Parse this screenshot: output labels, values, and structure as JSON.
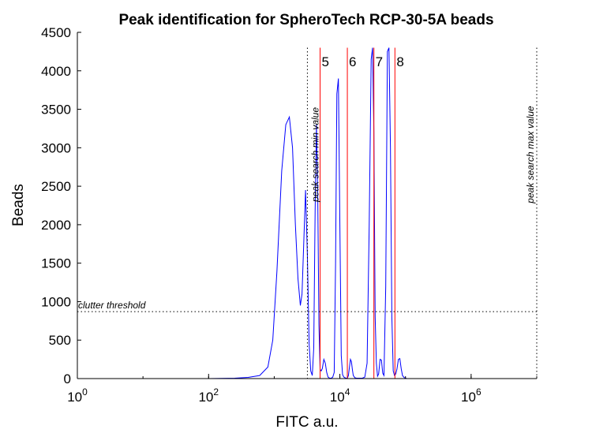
{
  "chart_data": {
    "type": "line",
    "title": "Peak identification for SpheroTech RCP-30-5A beads",
    "xlabel": "FITC a.u.",
    "ylabel": "Beads",
    "xscale": "log",
    "xlim": [
      1,
      10000000
    ],
    "ylim": [
      0,
      4500
    ],
    "x_ticks": [
      {
        "base": "10",
        "exp": "0",
        "value": 1
      },
      {
        "base": "10",
        "exp": "2",
        "value": 100
      },
      {
        "base": "10",
        "exp": "4",
        "value": 10000
      },
      {
        "base": "10",
        "exp": "6",
        "value": 1000000
      }
    ],
    "y_ticks": [
      "0",
      "500",
      "1000",
      "1500",
      "2000",
      "2500",
      "3000",
      "3500",
      "4000",
      "4500"
    ],
    "series": [
      {
        "color": "#0000ff",
        "x": [
          1,
          100,
          250,
          400,
          600,
          800,
          950,
          1100,
          1300,
          1500,
          1700,
          1900,
          2100,
          2300,
          2500,
          2650,
          2800,
          3000,
          3200,
          3400,
          3600,
          3800,
          4000,
          4200,
          4400,
          4600,
          4800,
          5000,
          5200,
          5400,
          5700,
          6000,
          6300,
          6600,
          7000,
          7400,
          7800,
          8200,
          8600,
          9000,
          9500,
          10000,
          10500,
          11000,
          11500,
          12000,
          12500,
          13000,
          13500,
          14000,
          14500,
          15000,
          15500,
          16000,
          17000,
          18000,
          19000,
          20000,
          22000,
          24000,
          26000,
          28000,
          30000,
          31500,
          33000,
          34500,
          36000,
          37500,
          39000,
          41000,
          43000,
          45000,
          47000,
          50000,
          53000,
          56000,
          59000,
          62000,
          65000,
          68000,
          71000,
          74000,
          78000,
          82000,
          86000,
          90000,
          95000,
          100000,
          105000,
          110000,
          120000,
          140000,
          200000,
          1000000,
          10000000
        ],
        "y": [
          0,
          0,
          5,
          15,
          40,
          150,
          500,
          1400,
          2700,
          3300,
          3400,
          3000,
          2000,
          1300,
          950,
          1100,
          1700,
          2450,
          1600,
          450,
          100,
          40,
          400,
          2200,
          3300,
          2400,
          700,
          120,
          100,
          130,
          250,
          200,
          80,
          20,
          5,
          5,
          20,
          80,
          1500,
          3700,
          3900,
          2000,
          300,
          50,
          20,
          10,
          5,
          5,
          40,
          150,
          250,
          220,
          120,
          40,
          10,
          5,
          5,
          5,
          5,
          20,
          200,
          2000,
          4150,
          4300,
          3200,
          800,
          200,
          30,
          60,
          250,
          240,
          70,
          40,
          1200,
          4250,
          4300,
          3000,
          800,
          100,
          40,
          60,
          120,
          250,
          260,
          130,
          40,
          15,
          5,
          0,
          0,
          0,
          0,
          0,
          0,
          0
        ]
      }
    ],
    "peak_lines": [
      {
        "label": "5",
        "x": 5000
      },
      {
        "label": "6",
        "x": 13000
      },
      {
        "label": "7",
        "x": 33000
      },
      {
        "label": "8",
        "x": 69000
      }
    ],
    "peak_line_color": "#ff0000",
    "annotations": {
      "clutter_threshold": {
        "text": "clutter threshold",
        "y": 870
      },
      "search_min": {
        "text": "peak search min value",
        "x": 3200
      },
      "search_max": {
        "text": "peak search max value",
        "x": 10000000
      }
    },
    "grid": false,
    "legend": "none"
  }
}
